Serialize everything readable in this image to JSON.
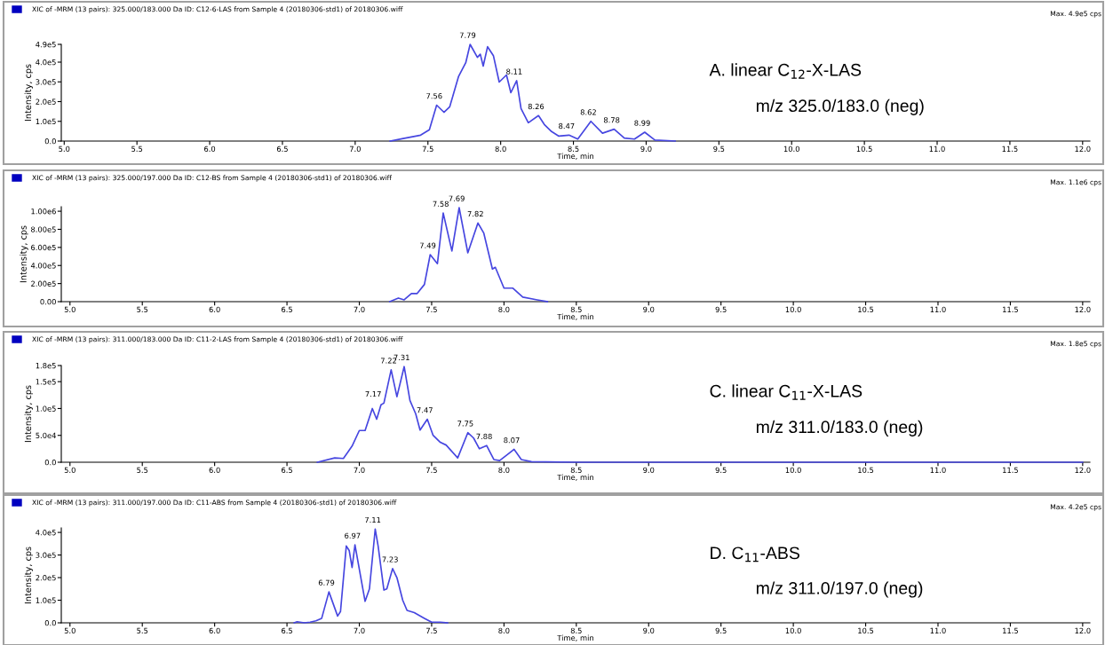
{
  "chart_data": [
    {
      "type": "line",
      "title": "XIC of -MRM (13 pairs): 325.000/183.000 Da ID: C12-6-LAS from Sample 4 (20180306-std1) of 20180306.wiff",
      "subtitle": "Max. 4.9e5 cps",
      "xlabel": "Time, min",
      "ylabel": "Intensity, cps",
      "color": "#4646e0",
      "x": [
        7.24,
        7.33,
        7.45,
        7.51,
        7.56,
        7.61,
        7.65,
        7.71,
        7.76,
        7.79,
        7.84,
        7.86,
        7.88,
        7.91,
        7.95,
        7.99,
        8.04,
        8.07,
        8.11,
        8.14,
        8.19,
        8.26,
        8.3,
        8.35,
        8.4,
        8.47,
        8.53,
        8.62,
        8.7,
        8.78,
        8.85,
        8.92,
        8.99,
        9.06,
        9.2
      ],
      "values": [
        0,
        13000,
        30000,
        57000,
        182000,
        146000,
        174000,
        326000,
        397000,
        490000,
        424000,
        440000,
        380000,
        478000,
        433000,
        299000,
        335000,
        245000,
        306000,
        165000,
        93000,
        129000,
        84000,
        48000,
        25000,
        30000,
        10000,
        100000,
        40000,
        60000,
        15000,
        10000,
        45000,
        5000,
        0
      ],
      "xlim": [
        4.98,
        12.05
      ],
      "ylim": [
        0,
        490000
      ],
      "xticks": [
        {
          "value": 5,
          "label": "5.0"
        },
        {
          "value": 5.5,
          "label": "5.5"
        },
        {
          "value": 6,
          "label": "6.0"
        },
        {
          "value": 6.5,
          "label": "6.5"
        },
        {
          "value": 7,
          "label": "7.0"
        },
        {
          "value": 7.5,
          "label": "7.5"
        },
        {
          "value": 8,
          "label": "8.0"
        },
        {
          "value": 8.5,
          "label": "8.5"
        },
        {
          "value": 9,
          "label": "9.0"
        },
        {
          "value": 9.5,
          "label": "9.5"
        },
        {
          "value": 10,
          "label": "10.0"
        },
        {
          "value": 10.5,
          "label": "10.5"
        },
        {
          "value": 11,
          "label": "11.0"
        },
        {
          "value": 11.5,
          "label": "11.5"
        },
        {
          "value": 12,
          "label": "12.0"
        }
      ],
      "yticks": [
        {
          "value": 0,
          "label": "0.0"
        },
        {
          "value": 100000,
          "label": "1.0e5"
        },
        {
          "value": 200000,
          "label": "2.0e5"
        },
        {
          "value": 300000,
          "label": "3.0e5"
        },
        {
          "value": 400000,
          "label": "4.0e5"
        },
        {
          "value": 490000,
          "label": "4.9e5"
        }
      ],
      "annotations": [
        {
          "text": "7.56",
          "x": 7.56,
          "y": 182000
        },
        {
          "text": "7.79",
          "x": 7.79,
          "y": 490000
        },
        {
          "text": "8.11",
          "x": 8.11,
          "y": 306000
        },
        {
          "text": "8.26",
          "x": 8.26,
          "y": 129000
        },
        {
          "text": "8.47",
          "x": 8.47,
          "y": 30000
        },
        {
          "text": "8.62",
          "x": 8.62,
          "y": 100000
        },
        {
          "text": "8.78",
          "x": 8.78,
          "y": 60000
        },
        {
          "text": "8.99",
          "x": 8.99,
          "y": 45000
        },
        "A. linear C$_{12}$-X-LAS",
        "m/z 325.0/183.0 (neg)"
      ]
    },
    {
      "type": "line",
      "title": "XIC of -MRM (13 pairs): 325.000/197.000 Da ID: C12-BS from Sample 4 (20180306-std1) of 20180306.wiff",
      "subtitle": "Max. 1.1e6 cps",
      "xlabel": "Time, min",
      "ylabel": "Intensity, cps",
      "color": "#4646e0",
      "x": [
        7.21,
        7.27,
        7.31,
        7.36,
        7.4,
        7.45,
        7.49,
        7.54,
        7.58,
        7.64,
        7.69,
        7.75,
        7.82,
        7.86,
        7.92,
        7.94,
        8.0,
        8.06,
        8.13,
        8.23,
        8.3
      ],
      "values": [
        0,
        40000,
        20000,
        90000,
        90000,
        190000,
        520000,
        420000,
        980000,
        560000,
        1040000,
        540000,
        870000,
        760000,
        360000,
        380000,
        150000,
        150000,
        50000,
        20000,
        0
      ],
      "xlim": [
        4.94,
        12.05
      ],
      "ylim": [
        0,
        1050000
      ],
      "xticks": [
        {
          "value": 5,
          "label": "5.0"
        },
        {
          "value": 5.5,
          "label": "5.5"
        },
        {
          "value": 6,
          "label": "6.0"
        },
        {
          "value": 6.5,
          "label": "6.5"
        },
        {
          "value": 7,
          "label": "7.0"
        },
        {
          "value": 7.5,
          "label": "7.5"
        },
        {
          "value": 8,
          "label": "8.0"
        },
        {
          "value": 8.5,
          "label": "8.5"
        },
        {
          "value": 9,
          "label": "9.0"
        },
        {
          "value": 9.5,
          "label": "9.5"
        },
        {
          "value": 10,
          "label": "10.0"
        },
        {
          "value": 10.5,
          "label": "10.5"
        },
        {
          "value": 11,
          "label": "11.0"
        },
        {
          "value": 11.5,
          "label": "11.5"
        },
        {
          "value": 12,
          "label": "12.0"
        }
      ],
      "yticks": [
        {
          "value": 0,
          "label": "0.00"
        },
        {
          "value": 200000,
          "label": "2.00e5"
        },
        {
          "value": 400000,
          "label": "4.00e5"
        },
        {
          "value": 600000,
          "label": "6.00e5"
        },
        {
          "value": 800000,
          "label": "8.00e5"
        },
        {
          "value": 1000000,
          "label": "1.00e6"
        }
      ],
      "annotations": [
        {
          "text": "7.49",
          "x": 7.49,
          "y": 520000
        },
        {
          "text": "7.58",
          "x": 7.58,
          "y": 980000
        },
        {
          "text": "7.69",
          "x": 7.69,
          "y": 1040000
        },
        {
          "text": "7.82",
          "x": 7.82,
          "y": 870000
        }
      ]
    },
    {
      "type": "line",
      "title": "XIC of -MRM (13 pairs): 311.000/183.000 Da ID: C11-2-LAS from Sample 4 (20180306-std1) of 20180306.wiff",
      "subtitle": "Max. 1.8e5 cps",
      "xlabel": "Time, min",
      "ylabel": "Intensity, cps",
      "color": "#4646e0",
      "x": [
        6.71,
        6.83,
        6.89,
        6.95,
        7.0,
        7.04,
        7.09,
        7.12,
        7.15,
        7.17,
        7.22,
        7.26,
        7.31,
        7.35,
        7.39,
        7.42,
        7.47,
        7.51,
        7.56,
        7.6,
        7.68,
        7.75,
        7.79,
        7.83,
        7.88,
        7.93,
        7.97,
        8.07,
        8.12,
        8.19,
        8.5,
        9.0,
        10.0,
        11.0,
        12.0
      ],
      "values": [
        0,
        8000,
        7000,
        30000,
        59000,
        59000,
        100000,
        80000,
        107000,
        110000,
        172000,
        122000,
        178000,
        115000,
        90000,
        60000,
        80000,
        50000,
        37000,
        32000,
        8000,
        55000,
        45000,
        25000,
        31000,
        5000,
        3000,
        24000,
        5000,
        1000,
        0,
        0,
        0,
        0,
        0
      ],
      "xlim": [
        4.94,
        12.05
      ],
      "ylim": [
        0,
        180000
      ],
      "xticks": [
        {
          "value": 5,
          "label": "5.0"
        },
        {
          "value": 5.5,
          "label": "5.5"
        },
        {
          "value": 6,
          "label": "6.0"
        },
        {
          "value": 6.5,
          "label": "6.5"
        },
        {
          "value": 7,
          "label": "7.0"
        },
        {
          "value": 7.5,
          "label": "7.5"
        },
        {
          "value": 8,
          "label": "8.0"
        },
        {
          "value": 8.5,
          "label": "8.5"
        },
        {
          "value": 9,
          "label": "9.0"
        },
        {
          "value": 9.5,
          "label": "9.5"
        },
        {
          "value": 10,
          "label": "10.0"
        },
        {
          "value": 10.5,
          "label": "10.5"
        },
        {
          "value": 11,
          "label": "11.0"
        },
        {
          "value": 11.5,
          "label": "11.5"
        },
        {
          "value": 12,
          "label": "12.0"
        }
      ],
      "yticks": [
        {
          "value": 0,
          "label": "0.0"
        },
        {
          "value": 50000,
          "label": "5.0e4"
        },
        {
          "value": 100000,
          "label": "1.0e5"
        },
        {
          "value": 150000,
          "label": "1.5e5"
        },
        {
          "value": 180000,
          "label": "1.8e5"
        }
      ],
      "annotations": [
        {
          "text": "7.17",
          "x": 7.17,
          "y": 110000
        },
        {
          "text": "7.22",
          "x": 7.22,
          "y": 172000
        },
        {
          "text": "7.31",
          "x": 7.31,
          "y": 178000
        },
        {
          "text": "7.47",
          "x": 7.47,
          "y": 80000
        },
        {
          "text": "7.75",
          "x": 7.75,
          "y": 55000
        },
        {
          "text": "7.88",
          "x": 7.88,
          "y": 31000
        },
        {
          "text": "8.07",
          "x": 8.07,
          "y": 24000
        },
        "C. linear C$_{11}$-X-LAS",
        "m/z 311.0/183.0 (neg)"
      ]
    },
    {
      "type": "line",
      "title": "XIC of -MRM (13 pairs): 311.000/197.000 Da ID: C11-ABS from Sample 4 (20180306-std1) of 20180306.wiff",
      "subtitle": "Max. 4.2e5 cps",
      "xlabel": "Time, min",
      "ylabel": "Intensity, cps",
      "color": "#4646e0",
      "x": [
        6.55,
        6.57,
        6.62,
        6.66,
        6.7,
        6.74,
        6.79,
        6.85,
        6.87,
        6.91,
        6.93,
        6.95,
        6.97,
        7.04,
        7.07,
        7.11,
        7.13,
        7.17,
        7.19,
        7.23,
        7.26,
        7.3,
        7.33,
        7.38,
        7.45,
        7.5,
        7.56,
        7.61
      ],
      "values": [
        0,
        5000,
        0,
        3000,
        9000,
        20000,
        137000,
        30000,
        50000,
        340000,
        320000,
        245000,
        345000,
        95000,
        150000,
        415000,
        340000,
        145000,
        150000,
        240000,
        200000,
        100000,
        55000,
        45000,
        20000,
        3000,
        3000,
        0
      ],
      "xlim": [
        4.94,
        12.05
      ],
      "ylim": [
        0,
        420000
      ],
      "xticks": [
        {
          "value": 5,
          "label": "5.0"
        },
        {
          "value": 5.5,
          "label": "5.5"
        },
        {
          "value": 6,
          "label": "6.0"
        },
        {
          "value": 6.5,
          "label": "6.5"
        },
        {
          "value": 7,
          "label": "7.0"
        },
        {
          "value": 7.5,
          "label": "7.5"
        },
        {
          "value": 8,
          "label": "8.0"
        },
        {
          "value": 8.5,
          "label": "8.5"
        },
        {
          "value": 9,
          "label": "9.0"
        },
        {
          "value": 9.5,
          "label": "9.5"
        },
        {
          "value": 10,
          "label": "10.0"
        },
        {
          "value": 10.5,
          "label": "10.5"
        },
        {
          "value": 11,
          "label": "11.0"
        },
        {
          "value": 11.5,
          "label": "11.5"
        },
        {
          "value": 12,
          "label": "12.0"
        }
      ],
      "yticks": [
        {
          "value": 0,
          "label": "0.0"
        },
        {
          "value": 100000,
          "label": "1.0e5"
        },
        {
          "value": 200000,
          "label": "2.0e5"
        },
        {
          "value": 300000,
          "label": "3.0e5"
        },
        {
          "value": 400000,
          "label": "4.0e5"
        }
      ],
      "annotations": [
        {
          "text": "6.79",
          "x": 6.79,
          "y": 137000
        },
        {
          "text": "6.97",
          "x": 6.97,
          "y": 345000
        },
        {
          "text": "7.11",
          "x": 7.11,
          "y": 415000
        },
        {
          "text": "7.23",
          "x": 7.23,
          "y": 240000
        },
        "D. C$_{11}$-ABS",
        "m/z 311.0/197.0 (neg)"
      ]
    }
  ]
}
